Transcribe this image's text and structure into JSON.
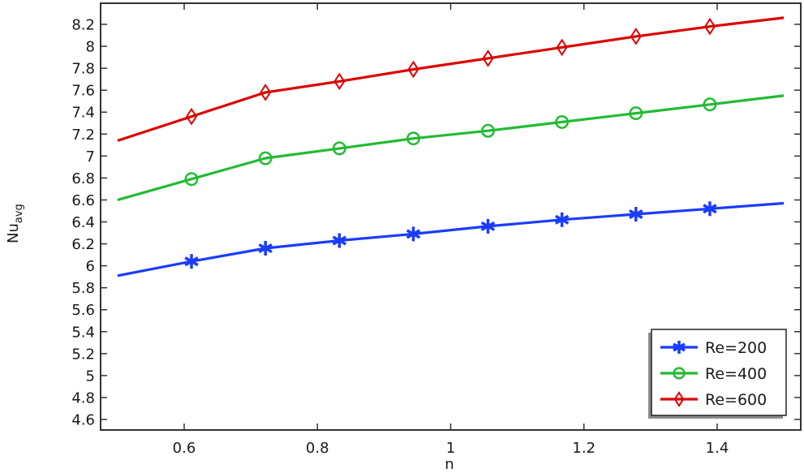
{
  "chart_data": {
    "type": "line",
    "title": "",
    "xlabel": "n",
    "ylabel": "Nu",
    "ylabel_subscript": "avg",
    "xlim": [
      0.475,
      1.525
    ],
    "ylim": [
      4.5,
      8.33
    ],
    "grid": false,
    "legend_position": "lower right",
    "x_ticks": [
      0.6,
      0.8,
      1,
      1.2,
      1.4
    ],
    "x_tick_labels": [
      "0.6",
      "0.8",
      "1",
      "1.2",
      "1.4"
    ],
    "y_ticks": [
      4.6,
      4.8,
      5,
      5.2,
      5.4,
      5.6,
      5.8,
      6,
      6.2,
      6.4,
      6.6,
      6.8,
      7,
      7.2,
      7.4,
      7.6,
      7.8,
      8,
      8.2
    ],
    "y_tick_labels": [
      "4.6",
      "4.8",
      "5",
      "5.2",
      "5.4",
      "5.6",
      "5.8",
      "6",
      "6.2",
      "6.4",
      "6.6",
      "6.8",
      "7",
      "7.2",
      "7.4",
      "7.6",
      "7.8",
      "8",
      "8.2"
    ],
    "x": [
      0.5,
      0.611,
      0.722,
      0.833,
      0.944,
      1.056,
      1.167,
      1.278,
      1.389,
      1.5
    ],
    "series": [
      {
        "name": "Re=200",
        "color": "#1a3cff",
        "marker": "asterisk",
        "values": [
          5.91,
          6.04,
          6.16,
          6.23,
          6.29,
          6.36,
          6.42,
          6.47,
          6.52,
          6.57
        ]
      },
      {
        "name": "Re=400",
        "color": "#22bb33",
        "marker": "circle",
        "values": [
          6.6,
          6.79,
          6.98,
          7.07,
          7.16,
          7.23,
          7.31,
          7.39,
          7.47,
          7.55
        ]
      },
      {
        "name": "Re=600",
        "color": "#dd0000",
        "marker": "diamond",
        "values": [
          7.14,
          7.36,
          7.58,
          7.68,
          7.79,
          7.89,
          7.99,
          8.09,
          8.18,
          8.26
        ]
      }
    ]
  }
}
